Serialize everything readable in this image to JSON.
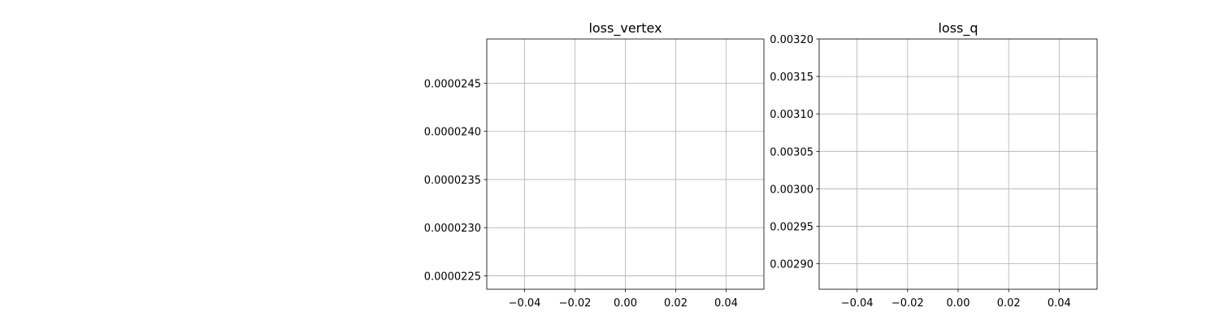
{
  "figure": {
    "background": "#ffffff"
  },
  "style": {
    "grid_color": "#b0b0b0",
    "axis_color": "#000000",
    "text_color": "#000000"
  },
  "chart_data": [
    {
      "type": "line",
      "title": "loss_vertex",
      "xlabel": "",
      "ylabel": "",
      "grid": true,
      "xlim": [
        -0.055,
        0.055
      ],
      "ylim": [
        2.236e-05,
        2.496e-05
      ],
      "x_ticks": [
        {
          "value": -0.04,
          "label": "−0.04"
        },
        {
          "value": -0.02,
          "label": "−0.02"
        },
        {
          "value": 0.0,
          "label": "0.00"
        },
        {
          "value": 0.02,
          "label": "0.02"
        },
        {
          "value": 0.04,
          "label": "0.04"
        }
      ],
      "y_ticks": [
        {
          "value": 2.25e-05,
          "label": "0.0000225"
        },
        {
          "value": 2.3e-05,
          "label": "0.0000230"
        },
        {
          "value": 2.35e-05,
          "label": "0.0000235"
        },
        {
          "value": 2.4e-05,
          "label": "0.0000240"
        },
        {
          "value": 2.45e-05,
          "label": "0.0000245"
        }
      ],
      "series": [
        {
          "x": [],
          "y": []
        }
      ]
    },
    {
      "type": "line",
      "title": "loss_q",
      "xlabel": "",
      "ylabel": "",
      "grid": true,
      "xlim": [
        -0.055,
        0.055
      ],
      "ylim": [
        0.002866,
        0.0032
      ],
      "x_ticks": [
        {
          "value": -0.04,
          "label": "−0.04"
        },
        {
          "value": -0.02,
          "label": "−0.02"
        },
        {
          "value": 0.0,
          "label": "0.00"
        },
        {
          "value": 0.02,
          "label": "0.02"
        },
        {
          "value": 0.04,
          "label": "0.04"
        }
      ],
      "y_ticks": [
        {
          "value": 0.0029,
          "label": "0.00290"
        },
        {
          "value": 0.00295,
          "label": "0.00295"
        },
        {
          "value": 0.003,
          "label": "0.00300"
        },
        {
          "value": 0.00305,
          "label": "0.00305"
        },
        {
          "value": 0.0031,
          "label": "0.00310"
        },
        {
          "value": 0.00315,
          "label": "0.00315"
        },
        {
          "value": 0.0032,
          "label": "0.00320"
        }
      ],
      "series": [
        {
          "x": [],
          "y": []
        }
      ]
    }
  ]
}
